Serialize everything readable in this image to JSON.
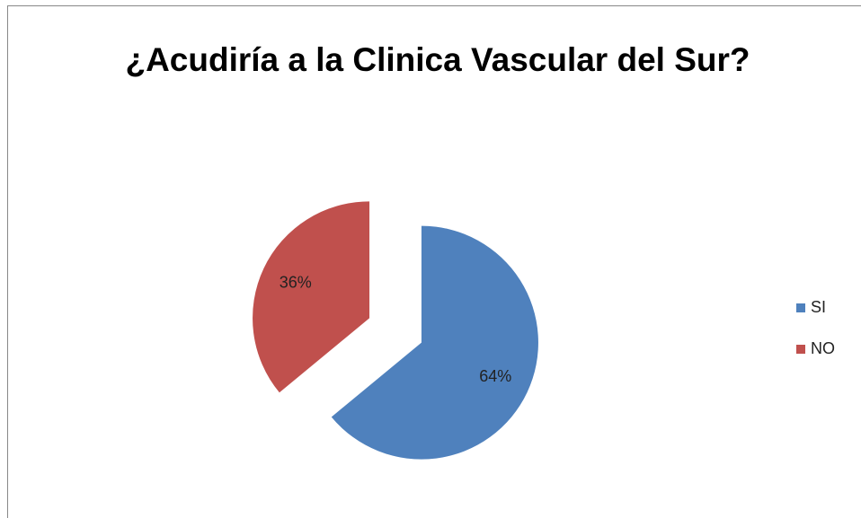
{
  "chart_data": {
    "type": "pie",
    "title": "¿Acudiría a la Clinica Vascular del Sur?",
    "categories": [
      "SI",
      "NO"
    ],
    "values": [
      64,
      36
    ],
    "value_labels": [
      "64%",
      "36%"
    ],
    "colors": [
      "#4f81bd",
      "#c0504d"
    ],
    "legend": "right"
  }
}
